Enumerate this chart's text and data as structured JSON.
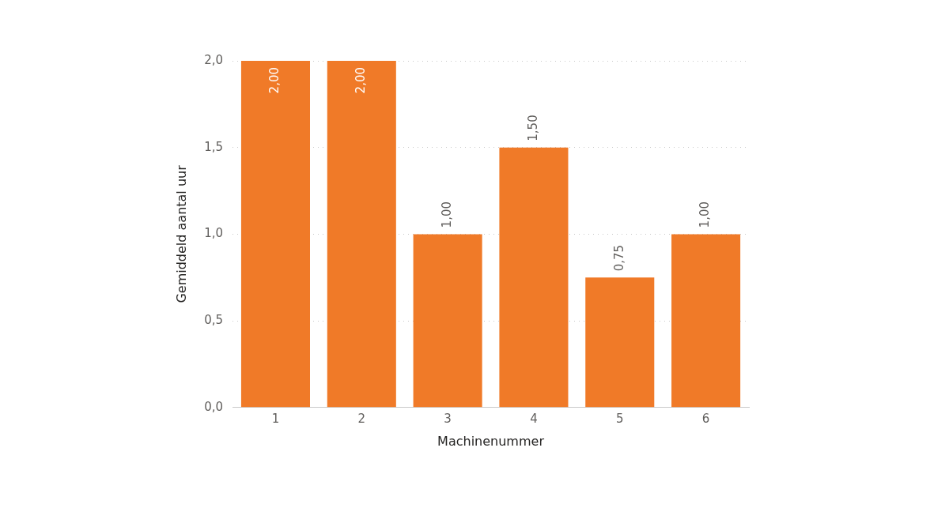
{
  "chart_data": {
    "type": "bar",
    "categories": [
      "1",
      "2",
      "3",
      "4",
      "5",
      "6"
    ],
    "values": [
      2.0,
      2.0,
      1.0,
      1.5,
      0.75,
      1.0
    ],
    "value_labels": [
      "2,00",
      "2,00",
      "1,00",
      "1,50",
      "0,75",
      "1,00"
    ],
    "color": "#f07a28",
    "xlabel": "Machinenummer",
    "ylabel": "Gemiddeld aantal uur",
    "ylim": [
      0,
      2
    ],
    "yticks": [
      {
        "value": 0,
        "label": "0,0"
      },
      {
        "value": 0.5,
        "label": "0,5"
      },
      {
        "value": 1,
        "label": "1,0"
      },
      {
        "value": 1.5,
        "label": "1,5"
      },
      {
        "value": 2,
        "label": "2,0"
      }
    ],
    "grid": "y",
    "legend": false
  }
}
